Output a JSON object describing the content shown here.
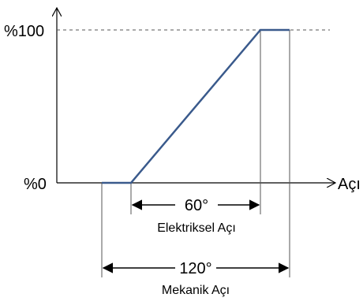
{
  "y_top_label": "%100",
  "y_bottom_label": "%0",
  "x_axis_label": "Açı",
  "electrical": {
    "angle": "60°",
    "label": "Elektriksel Açı"
  },
  "mechanical": {
    "angle": "120°",
    "label": "Mekanik Açı"
  },
  "colors": {
    "curve": "#3a5a8c",
    "axis": "#000000",
    "guide": "#555555"
  }
}
